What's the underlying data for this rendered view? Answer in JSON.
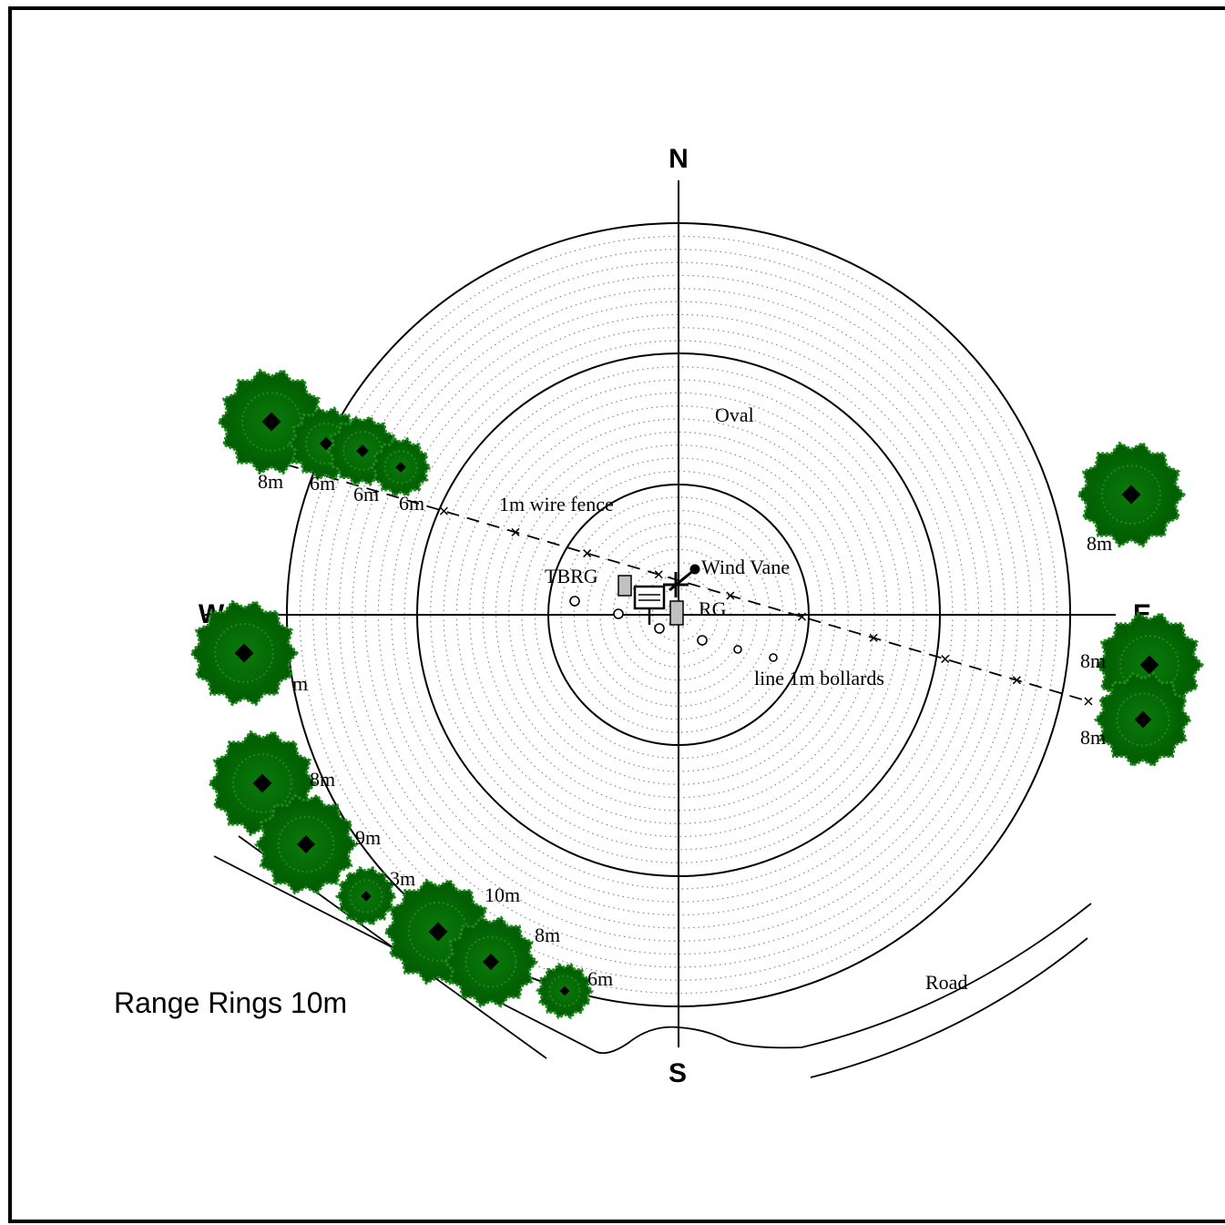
{
  "compass": {
    "north": "N",
    "south": "S",
    "west": "W",
    "east": "E"
  },
  "labels": {
    "oval": "Oval",
    "fence": "1m wire fence",
    "tbrg": "TBRG",
    "wind_vane": "Wind Vane",
    "rg": "RG",
    "bollards": "line 1m bollards",
    "road": "Road",
    "range_rings": "Range Rings 10m"
  },
  "tree_heights": {
    "nw1": "8m",
    "nw2": "6m",
    "nw3": "6m",
    "nw4": "6m",
    "ne1": "8m",
    "w1": "m",
    "e1": "8m",
    "e2": "8m",
    "sw1": "8m",
    "sw2": "9m",
    "sw3": "3m",
    "sw4": "10m",
    "sw5": "8m",
    "sw6": "6m"
  },
  "colors": {
    "tree_dark": "#006400",
    "tree_light": "#1e8a1e",
    "line": "#000000",
    "dotted": "#888888"
  }
}
